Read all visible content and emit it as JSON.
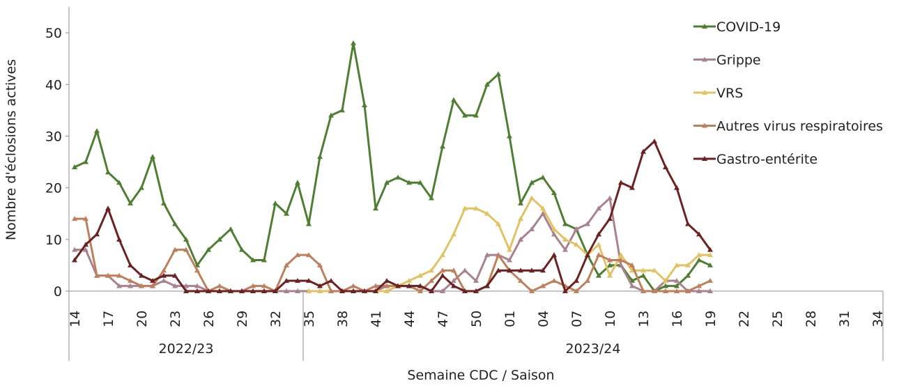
{
  "chart_data": {
    "type": "line",
    "y_label": "Nombre d'éclosions actives",
    "x_label": "Semaine CDC / Saison",
    "ylim": [
      0,
      55
    ],
    "yticks": [
      0,
      10,
      20,
      30,
      40,
      50
    ],
    "legend": "right",
    "categories": [
      "14",
      null,
      null,
      "17",
      null,
      null,
      "20",
      null,
      null,
      "23",
      null,
      null,
      "26",
      null,
      null,
      "29",
      null,
      null,
      "32",
      null,
      null,
      "35",
      null,
      null,
      "38",
      null,
      null,
      "41",
      null,
      null,
      "44",
      null,
      null,
      "47",
      null,
      null,
      "50",
      null,
      null,
      "01",
      null,
      null,
      "04",
      null,
      null,
      "07",
      null,
      null,
      "10",
      null,
      null,
      "13",
      null,
      null,
      "16",
      null,
      null,
      "19",
      null,
      null,
      "22",
      null,
      null,
      "25",
      null,
      null,
      "28",
      null,
      null,
      "31",
      null,
      null,
      "34"
    ],
    "seasons": [
      {
        "label": "2022/23",
        "categories": 21
      },
      {
        "label": "2023/24",
        "categories": 52
      }
    ],
    "series": [
      {
        "name": "COVID-19",
        "color": "#4e7f31",
        "values": [
          24,
          25,
          31,
          23,
          21,
          17,
          20,
          26,
          17,
          13,
          10,
          5,
          8,
          10,
          12,
          8,
          6,
          6,
          17,
          15,
          21,
          13,
          26,
          34,
          35,
          48,
          36,
          16,
          21,
          22,
          21,
          21,
          18,
          28,
          37,
          34,
          34,
          40,
          42,
          30,
          17,
          21,
          22,
          19,
          13,
          12,
          7,
          3,
          5,
          5,
          2,
          3,
          0,
          1,
          1,
          3,
          6,
          5,
          null,
          null,
          null,
          null,
          null,
          null,
          null,
          null,
          null,
          null,
          null,
          null,
          null,
          null,
          null
        ]
      },
      {
        "name": "Grippe",
        "color": "#a9818f",
        "values": [
          8,
          8,
          3,
          3,
          1,
          1,
          1,
          1,
          2,
          1,
          1,
          1,
          0,
          0,
          0,
          0,
          0,
          0,
          0,
          0,
          0,
          0,
          0,
          0,
          0,
          0,
          0,
          0,
          1,
          1,
          1,
          1,
          0,
          0,
          2,
          4,
          2,
          7,
          7,
          6,
          10,
          12,
          15,
          11,
          8,
          12,
          13,
          16,
          18,
          5,
          1,
          0,
          0,
          2,
          2,
          0,
          0,
          0,
          null,
          null,
          null,
          null,
          null,
          null,
          null,
          null,
          null,
          null,
          null,
          null,
          null,
          null,
          null
        ]
      },
      {
        "name": "VRS",
        "color": "#e2c262",
        "values": [
          null,
          null,
          null,
          null,
          null,
          null,
          null,
          null,
          null,
          null,
          null,
          null,
          null,
          null,
          null,
          null,
          null,
          null,
          null,
          null,
          null,
          0,
          0,
          0,
          0,
          0,
          0,
          0,
          0,
          1,
          2,
          3,
          4,
          7,
          11,
          16,
          16,
          15,
          13,
          8,
          14,
          18,
          16,
          12,
          10,
          9,
          7,
          9,
          3,
          7,
          4,
          4,
          4,
          2,
          5,
          5,
          7,
          7,
          null,
          null,
          null,
          null,
          null,
          null,
          null,
          null,
          null,
          null,
          null,
          null,
          null,
          null,
          null
        ]
      },
      {
        "name": "Autres virus respiratoires",
        "color": "#c07f5b",
        "values": [
          14,
          14,
          3,
          3,
          3,
          2,
          1,
          1,
          4,
          8,
          8,
          4,
          0,
          1,
          0,
          0,
          1,
          1,
          0,
          5,
          7,
          7,
          5,
          0,
          0,
          1,
          0,
          1,
          1,
          1,
          1,
          0,
          2,
          4,
          4,
          0,
          0,
          1,
          7,
          4,
          2,
          0,
          1,
          2,
          1,
          0,
          2,
          7,
          6,
          6,
          5,
          0,
          0,
          0,
          0,
          0,
          1,
          2,
          null,
          null,
          null,
          null,
          null,
          null,
          null,
          null,
          null,
          null,
          null,
          null,
          null,
          null,
          null
        ]
      },
      {
        "name": "Gastro-entérite",
        "color": "#6e2121",
        "values": [
          6,
          9,
          11,
          16,
          10,
          5,
          3,
          2,
          3,
          3,
          0,
          0,
          0,
          0,
          0,
          0,
          0,
          0,
          0,
          2,
          2,
          2,
          1,
          2,
          0,
          0,
          0,
          0,
          2,
          1,
          1,
          1,
          0,
          3,
          1,
          0,
          0,
          1,
          4,
          4,
          4,
          4,
          4,
          7,
          0,
          2,
          7,
          11,
          14,
          21,
          20,
          27,
          29,
          24,
          20,
          13,
          11,
          8,
          null,
          null,
          null,
          null,
          null,
          null,
          null,
          null,
          null,
          null,
          null,
          null,
          null,
          null,
          null
        ]
      }
    ]
  }
}
